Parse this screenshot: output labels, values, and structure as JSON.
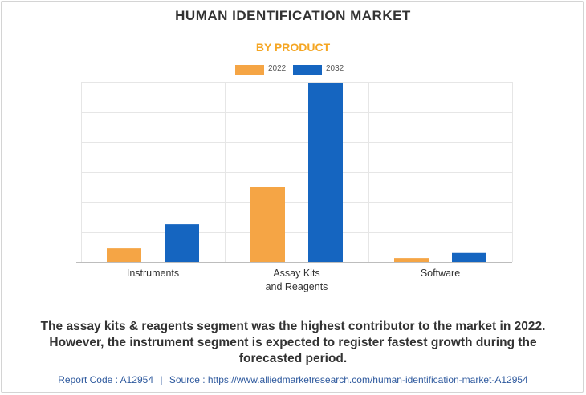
{
  "colors": {
    "series_2022": "#f5a545",
    "series_2032": "#1565c0",
    "subtitle": "#f5a623",
    "grid": "#e6e6e6",
    "axis": "#bdbdbd"
  },
  "chart_data": {
    "type": "bar",
    "title": "HUMAN IDENTIFICATION MARKET",
    "subtitle": "BY PRODUCT",
    "categories": [
      [
        "Instruments"
      ],
      [
        "Assay Kits",
        "and Reagents"
      ],
      [
        "Software"
      ]
    ],
    "series": [
      {
        "name": "2022",
        "values": [
          0.45,
          2.48,
          0.13
        ]
      },
      {
        "name": "2032",
        "values": [
          1.25,
          5.95,
          0.3
        ]
      }
    ],
    "ylim": [
      0,
      6
    ],
    "y_gridlines": [
      0,
      1,
      2,
      3,
      4,
      5,
      6
    ],
    "xlabel": "",
    "ylabel": "",
    "legend_position": "top-center",
    "grid": true
  },
  "caption": {
    "line1": "The assay kits & reagents segment was the highest contributor to the market in 2022.",
    "line2": "However, the instrument segment is expected to register fastest growth during the",
    "line3": "forecasted period."
  },
  "footer": {
    "report_code": "Report Code : A12954",
    "separator": "|",
    "source": "Source : https://www.alliedmarketresearch.com/human-identification-market-A12954"
  }
}
